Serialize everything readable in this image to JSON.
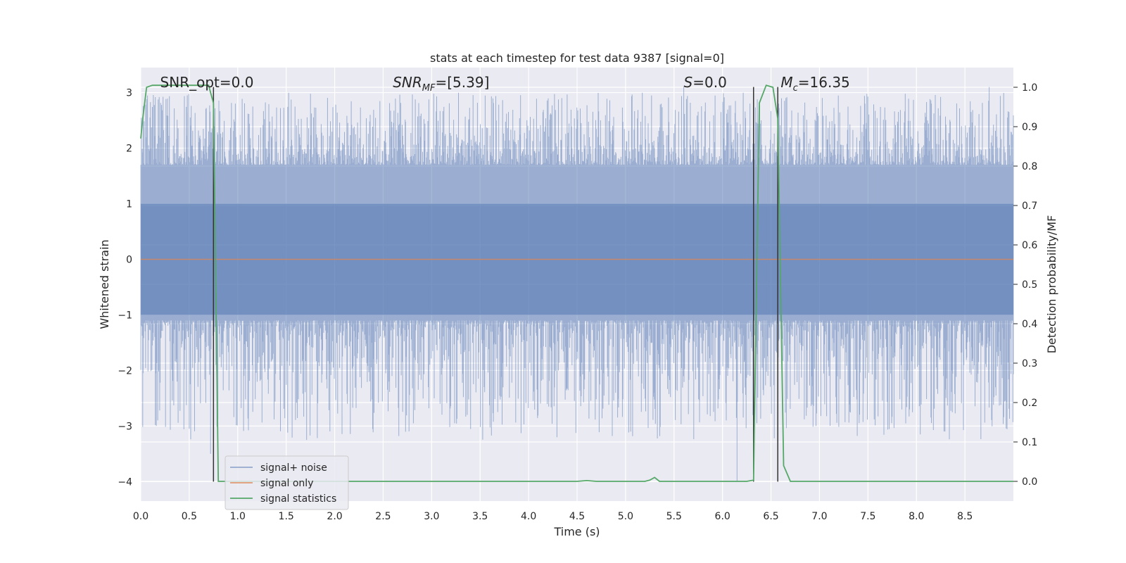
{
  "chart_data": {
    "type": "line",
    "title": "stats at each timestep for test data 9387 [signal=0]",
    "xlabel": "Time (s)",
    "ylabel_left": "Whitened strain",
    "ylabel_right": "Detection probability/MF",
    "xlim": [
      0.0,
      9.0
    ],
    "ylim_left": [
      -4.35,
      3.45
    ],
    "ylim_right": [
      -0.05,
      1.05
    ],
    "x_ticks": [
      "0.0",
      "0.5",
      "1.0",
      "1.5",
      "2.0",
      "2.5",
      "3.0",
      "3.5",
      "4.0",
      "4.5",
      "5.0",
      "5.5",
      "6.0",
      "6.5",
      "7.0",
      "7.5",
      "8.0",
      "8.5"
    ],
    "y_ticks_left": [
      "3",
      "2",
      "1",
      "0",
      "−1",
      "−2",
      "−3",
      "−4"
    ],
    "y_ticks_right": [
      "1.0",
      "0.9",
      "0.8",
      "0.7",
      "0.6",
      "0.5",
      "0.4",
      "0.3",
      "0.2",
      "0.1",
      "0.0"
    ],
    "grid": true,
    "annotations": [
      {
        "name": "snr-opt-annotation",
        "html": "SNR_opt=0.0",
        "x": 0.2
      },
      {
        "name": "snr-mf-annotation",
        "html": "<tspan font-style='italic'>SNR</tspan><tspan font-style='italic' font-size='13' dy='5'>MF</tspan><tspan dy='-5'>=[5.39]</tspan>",
        "x": 2.6
      },
      {
        "name": "s-annotation",
        "html": "<tspan font-style='italic'>S</tspan>=0.0",
        "x": 5.6
      },
      {
        "name": "mc-annotation",
        "html": "<tspan font-style='italic'>M</tspan><tspan font-style='italic' font-size='13' dy='5'>c</tspan><tspan dy='-5'>=16.35</tspan>",
        "x": 6.6
      }
    ],
    "vlines": [
      {
        "x": 0.75,
        "y_top": 3.1,
        "y_bottom": -4.0
      },
      {
        "x": 6.32,
        "y_top": 3.1,
        "y_bottom": -4.0
      },
      {
        "x": 6.57,
        "y_top": 3.1,
        "y_bottom": -4.0
      }
    ],
    "series": [
      {
        "name": "signal+ noise",
        "axis": "left",
        "color": "#4c72b0",
        "style": "noise",
        "approx_envelope": {
          "typical": [
            -1.1,
            1.7
          ],
          "extremes": [
            -3.25,
            3.0
          ],
          "events": [
            [
              0.72,
              -3.5
            ],
            [
              0.5,
              -3.05
            ],
            [
              6.15,
              -4.0
            ],
            [
              0.48,
              2.95
            ],
            [
              5.6,
              3.1
            ],
            [
              8.75,
              3.1
            ]
          ]
        }
      },
      {
        "name": "signal only",
        "axis": "left",
        "color": "#dd8452",
        "x": [
          0.0,
          9.0
        ],
        "y": [
          0.0,
          0.0
        ]
      },
      {
        "name": "signal statistics",
        "axis": "right",
        "color": "#55a868",
        "x": [
          0.0,
          0.02,
          0.06,
          0.12,
          0.2,
          0.7,
          0.75,
          0.8,
          0.85,
          0.9,
          4.4,
          4.5,
          4.6,
          4.7,
          5.2,
          5.25,
          5.3,
          5.35,
          5.4,
          6.25,
          6.32,
          6.38,
          6.45,
          6.52,
          6.57,
          6.63,
          6.7,
          6.75,
          9.0
        ],
        "y": [
          0.87,
          0.92,
          1.0,
          1.005,
          1.005,
          1.005,
          0.96,
          0.0,
          0.0,
          0.0,
          0.0,
          0.0,
          0.002,
          0.0,
          0.0,
          0.003,
          0.01,
          0.0,
          0.0,
          0.0,
          0.003,
          0.96,
          1.005,
          1.0,
          0.92,
          0.04,
          0.0,
          0.0,
          0.0
        ]
      }
    ],
    "legend": {
      "placement": "lower-left",
      "entries": [
        "signal+ noise",
        "signal only",
        "signal statistics"
      ]
    }
  }
}
